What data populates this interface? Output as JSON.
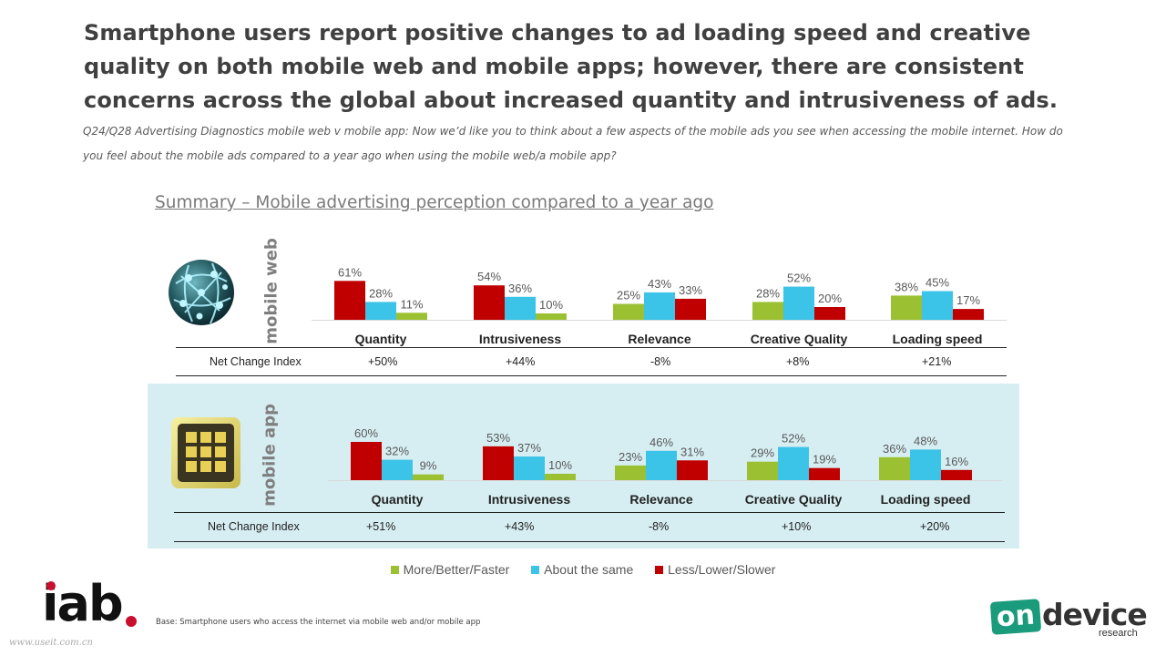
{
  "headline": "Smartphone users report positive changes to ad loading speed and creative quality on both mobile web and mobile apps; however, there are consistent concerns across the global about increased quantity and intrusiveness of ads.",
  "question": "Q24/Q28 Advertising Diagnostics mobile web v mobile app: Now we’d like you to think about a few aspects of the mobile ads you see when accessing the mobile internet. How do you feel about the mobile ads compared to a year ago when using the mobile web/a mobile app?",
  "subtitle": "Summary – Mobile advertising perception compared to a year ago",
  "colors": {
    "more": "#9bc031",
    "same": "#3cc3e8",
    "less": "#c00000",
    "panel": "#d6eef2"
  },
  "icons": {
    "web": "globe-network-icon",
    "app": "app-grid-icon"
  },
  "net_change_label": "Net Change Index",
  "legend": [
    {
      "label": "More/Better/Faster",
      "color": "#9bc031"
    },
    {
      "label": "About the same",
      "color": "#3cc3e8"
    },
    {
      "label": "Less/Lower/Slower",
      "color": "#c00000"
    }
  ],
  "base_note": "Base: Smartphone users who access the internet via mobile web and/or mobile app",
  "logos": {
    "iab": "iab",
    "ondevice_1": "on",
    "ondevice_2": "device",
    "ondevice_3": "research"
  },
  "watermark": "www.useit.com.cn",
  "chart_data": [
    {
      "type": "bar",
      "name": "mobile web",
      "categories": [
        "Quantity",
        "Intrusiveness",
        "Relevance",
        "Creative Quality",
        "Loading speed"
      ],
      "series": [
        {
          "name": "More/Better/Faster",
          "values": [
            11,
            10,
            25,
            28,
            38
          ]
        },
        {
          "name": "About the same",
          "values": [
            28,
            36,
            43,
            52,
            45
          ]
        },
        {
          "name": "Less/Lower/Slower",
          "values": [
            61,
            54,
            33,
            20,
            17
          ]
        }
      ],
      "bar_order": [
        [
          2,
          1,
          0
        ],
        [
          2,
          1,
          0
        ],
        [
          0,
          1,
          2
        ],
        [
          0,
          1,
          2
        ],
        [
          0,
          1,
          2
        ]
      ],
      "net_change_index": [
        "+50%",
        "+44%",
        "-8%",
        "+8%",
        "+21%"
      ],
      "ylim": [
        0,
        100
      ]
    },
    {
      "type": "bar",
      "name": "mobile app",
      "categories": [
        "Quantity",
        "Intrusiveness",
        "Relevance",
        "Creative Quality",
        "Loading speed"
      ],
      "series": [
        {
          "name": "More/Better/Faster",
          "values": [
            9,
            10,
            23,
            29,
            36
          ]
        },
        {
          "name": "About the same",
          "values": [
            32,
            37,
            46,
            52,
            48
          ]
        },
        {
          "name": "Less/Lower/Slower",
          "values": [
            60,
            53,
            31,
            19,
            16
          ]
        }
      ],
      "bar_order": [
        [
          2,
          1,
          0
        ],
        [
          2,
          1,
          0
        ],
        [
          0,
          1,
          2
        ],
        [
          0,
          1,
          2
        ],
        [
          0,
          1,
          2
        ]
      ],
      "net_change_index": [
        "+51%",
        "+43%",
        "-8%",
        "+10%",
        "+20%"
      ],
      "ylim": [
        0,
        100
      ]
    }
  ]
}
